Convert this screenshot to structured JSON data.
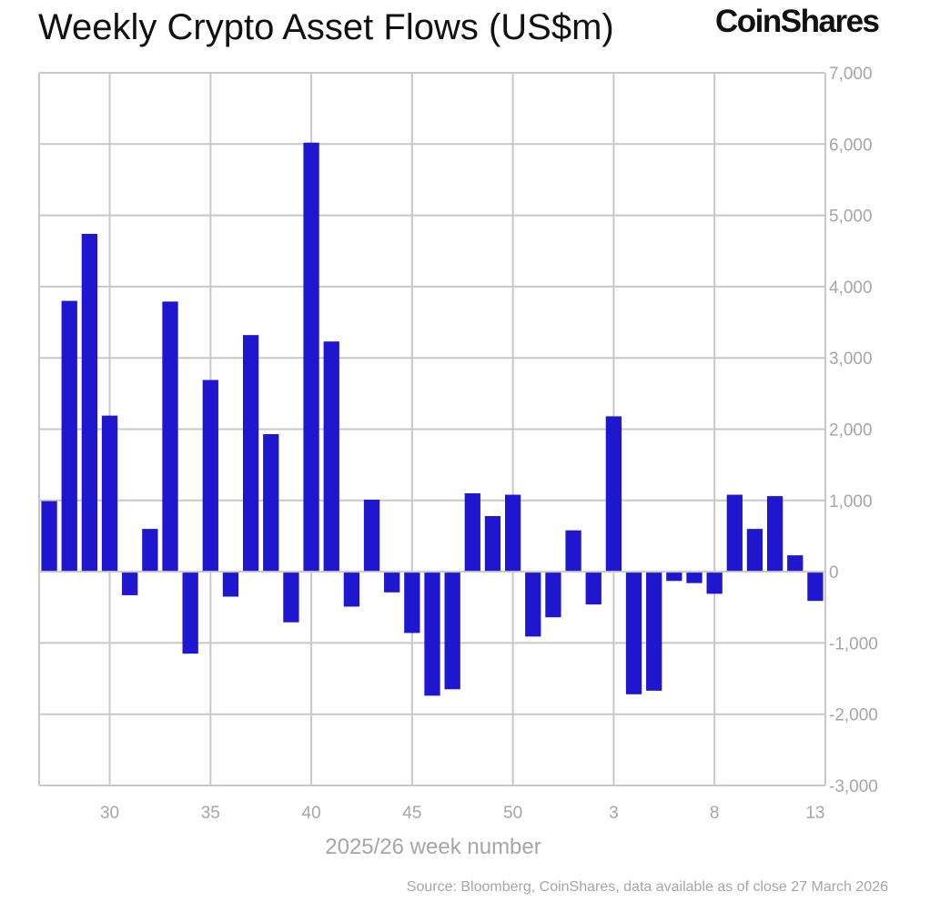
{
  "header": {
    "title": "Weekly Crypto Asset Flows (US$m)",
    "logo": "CoinShares"
  },
  "footer": {
    "source": "Source: Bloomberg, CoinShares, data available as of close 27 March 2026"
  },
  "colors": {
    "bar": "#1f17d0",
    "grid": "#c8c8c8",
    "tick_text": "#a6a6a6",
    "title": "#111111"
  },
  "chart_data": {
    "type": "bar",
    "title": "Weekly Crypto Asset Flows (US$m)",
    "xlabel": "2025/26 week number",
    "ylabel": "",
    "ylim": [
      -3000,
      7000
    ],
    "y_ticks": [
      7000,
      6000,
      5000,
      4000,
      3000,
      2000,
      1000,
      0,
      -1000,
      -2000,
      -3000
    ],
    "y_tick_labels": [
      "7,000",
      "6,000",
      "5,000",
      "4,000",
      "3,000",
      "2,000",
      "1,000",
      "0",
      "-1,000",
      "-2,000",
      "-3,000"
    ],
    "x_tick_labels": [
      "30",
      "35",
      "40",
      "45",
      "50",
      "3",
      "8",
      "13"
    ],
    "grid": true,
    "legend": "none",
    "categories": [
      "27",
      "28",
      "29",
      "30",
      "31",
      "32",
      "33",
      "34",
      "35",
      "36",
      "37",
      "38",
      "39",
      "40",
      "41",
      "42",
      "43",
      "44",
      "45",
      "46",
      "47",
      "48",
      "49",
      "50",
      "51",
      "52",
      "1",
      "2",
      "3",
      "4",
      "5",
      "6",
      "7",
      "8",
      "9",
      "10",
      "11",
      "12",
      "13"
    ],
    "values": [
      990,
      3800,
      4740,
      2190,
      -330,
      600,
      3790,
      -1150,
      2690,
      -350,
      3320,
      1930,
      -710,
      6020,
      3230,
      -490,
      1010,
      -290,
      -860,
      -1740,
      -1650,
      1100,
      780,
      1080,
      -910,
      -640,
      580,
      -460,
      2180,
      -1720,
      -1670,
      -130,
      -160,
      -310,
      1080,
      600,
      1060,
      230,
      -410
    ]
  }
}
